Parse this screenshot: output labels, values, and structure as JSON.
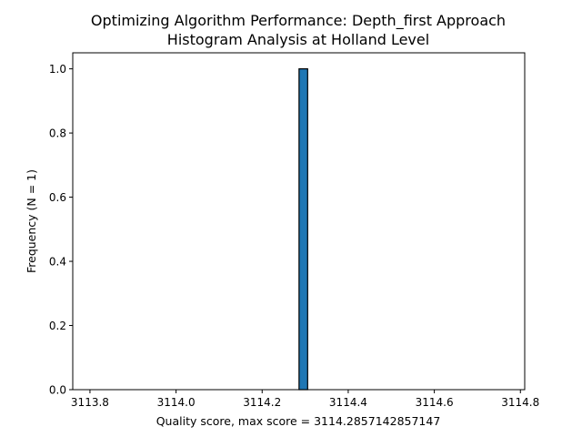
{
  "chart_data": {
    "type": "bar",
    "title_line1": "Optimizing Algorithm Performance: Depth_first Approach",
    "title_line2": "Histogram Analysis at Holland Level",
    "xlabel": "Quality score, max score = 3114.2857142857147",
    "ylabel": "Frequency (N = 1)",
    "xlim": [
      3113.76,
      3114.81
    ],
    "ylim": [
      0,
      1.05
    ],
    "x_ticks": [
      "3113.8",
      "3114.0",
      "3114.2",
      "3114.4",
      "3114.6",
      "3114.8"
    ],
    "y_ticks": [
      "0.0",
      "0.2",
      "0.4",
      "0.6",
      "0.8",
      "1.0"
    ],
    "bin_range": [
      3113.785714,
      3114.785714
    ],
    "bin_count": 50,
    "bins": [
      {
        "x_start": 3114.285714,
        "x_end": 3114.305714,
        "value": 1
      }
    ],
    "grid": false,
    "bar_color": "#1f77b4",
    "edge_color": "#000000"
  }
}
